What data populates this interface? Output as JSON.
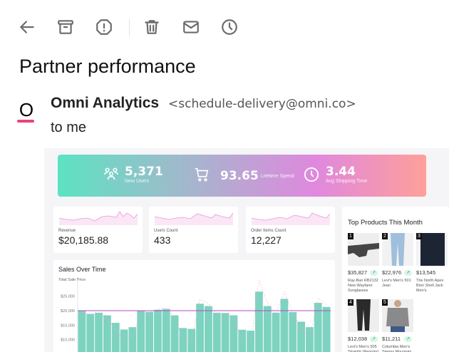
{
  "toolbar": {
    "icons": [
      "back-arrow-icon",
      "archive-icon",
      "report-spam-icon",
      "trash-icon",
      "mail-icon",
      "clock-icon"
    ]
  },
  "email": {
    "subject": "Partner performance",
    "sender_name": "Omni Analytics",
    "sender_email": "<schedule-delivery@omni.co>",
    "recipient": "to me",
    "avatar_letter": "O",
    "avatar_accent": "#e8447a"
  },
  "dashboard": {
    "banner": {
      "new_users": {
        "value": "5,371",
        "label": "New Users"
      },
      "lifetime_spend": {
        "value": "93.65",
        "label": "Lifetime Spend"
      },
      "shipping": {
        "value": "3.44",
        "label": "Avg Shipping Time"
      }
    },
    "kpis": [
      {
        "label": "Revenue",
        "value": "$20,185.88"
      },
      {
        "label": "Users Count",
        "value": "433"
      },
      {
        "label": "Order Items Count",
        "value": "12,227"
      }
    ],
    "top_products": {
      "title": "Top Products This Month",
      "items": [
        {
          "rank": "1",
          "price": "$35,827",
          "name": "Ray-Ban RB2132 New Wayfarer Sunglasses"
        },
        {
          "rank": "2",
          "price": "$22,976",
          "name": "Levi's Men's 501 Jean"
        },
        {
          "rank": "3",
          "price": "$13,545",
          "name": "The North Apex Bion Shell Jack Men's"
        },
        {
          "rank": "4",
          "price": "$12,038",
          "name": "Levi's Men's 505 Straight (Regular)"
        },
        {
          "rank": "5",
          "price": "$11,211",
          "name": "Columbia Men's Steens Mountain"
        }
      ]
    }
  },
  "chart_data": {
    "type": "bar",
    "title": "Sales Over Time",
    "ylabel": "Total Sale Price",
    "yticks": [
      "$10,000",
      "$15,000",
      "$20,000",
      "$25,000"
    ],
    "ytick_values": [
      10000,
      15000,
      20000,
      25000
    ],
    "values": [
      20000,
      18900,
      19300,
      18400,
      15800,
      13500,
      14300,
      19900,
      19600,
      20300,
      20600,
      18400,
      14000,
      13700,
      22400,
      21600,
      19300,
      19200,
      18400,
      13400,
      13100,
      26600,
      21600,
      19300,
      24100,
      19500,
      16200,
      14300,
      22700,
      21300
    ],
    "reference_line": 20000,
    "bar_color": "#7dd3c0",
    "line_color": "#b14fc5",
    "grid": false
  }
}
